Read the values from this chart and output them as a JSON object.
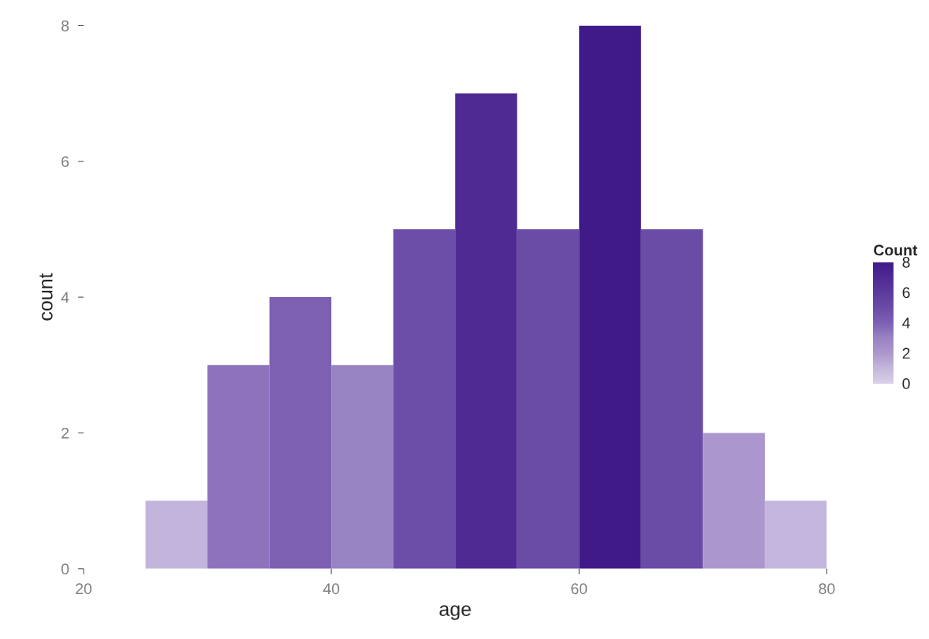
{
  "chart_data": {
    "type": "histogram",
    "xlabel": "age",
    "ylabel": "count",
    "bins": [
      25,
      30,
      35,
      40,
      45,
      50,
      55,
      60,
      65,
      70,
      75,
      80
    ],
    "values": [
      1,
      3,
      4,
      3,
      5,
      7,
      5,
      8,
      5,
      2,
      1
    ],
    "colors": [
      "#c3b4dc",
      "#8d73bc",
      "#7d60b2",
      "#9883c3",
      "#6c4ea8",
      "#4f2a93",
      "#6a4ba6",
      "#3f1a88",
      "#6a4ba6",
      "#ab97cd",
      "#c4b6dc"
    ],
    "xlim": [
      20,
      80
    ],
    "xticks": [
      20,
      40,
      60,
      80
    ],
    "ylim": [
      0,
      8
    ],
    "yticks": [
      0,
      2,
      4,
      6,
      8
    ],
    "clabel": "Count",
    "clim": [
      0,
      8
    ],
    "cticks": [
      0,
      2,
      4,
      6,
      8
    ],
    "grid": false
  }
}
